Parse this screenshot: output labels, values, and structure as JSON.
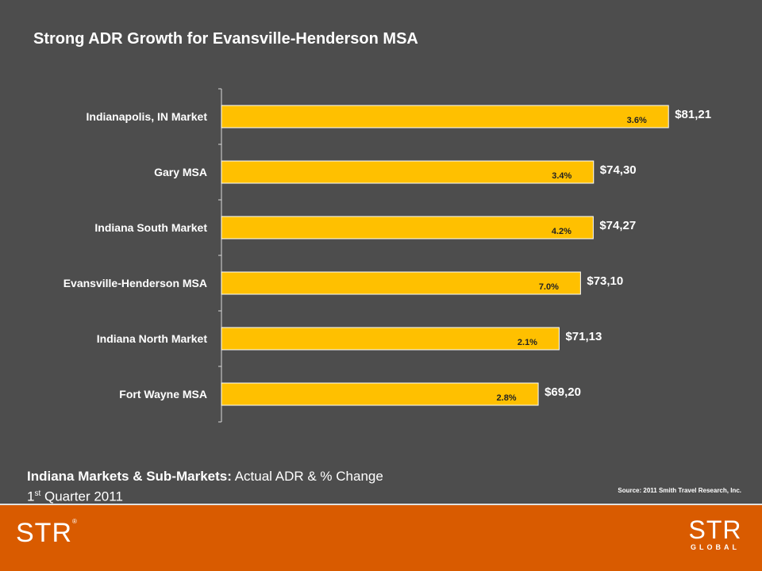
{
  "title": "Strong ADR Growth for Evansville-Henderson MSA",
  "subtitle": {
    "bold_part": "Indiana Markets & Sub-Markets:",
    "normal_part": "Actual ADR & % Change",
    "quarter_num": "1",
    "quarter_sup": "st",
    "quarter_rest": "Quarter 2011"
  },
  "source": "Source: 2011 Smith Travel Research, Inc.",
  "logos": {
    "left": "STR",
    "left_mark": "®",
    "right_top": "STR",
    "right_bottom": "GLOBAL"
  },
  "colors": {
    "background": "#4d4d4d",
    "bar": "#ffc000",
    "footer": "#d95b00",
    "text": "#ffffff"
  },
  "chart_data": {
    "type": "bar",
    "orientation": "horizontal",
    "categories": [
      "Indianapolis, IN Market",
      "Gary MSA",
      "Indiana South Market",
      "Evansville-Henderson MSA",
      "Indiana North Market",
      "Fort Wayne MSA"
    ],
    "values": [
      81.21,
      74.3,
      74.27,
      73.1,
      71.13,
      69.2
    ],
    "value_labels": [
      "$81,21",
      "$74,30",
      "$74,27",
      "$73,10",
      "$71,13",
      "$69,20"
    ],
    "pct_change_labels": [
      "3.6%",
      "3.4%",
      "4.2%",
      "7.0%",
      "2.1%",
      "2.8%"
    ],
    "xlim": [
      40,
      82
    ],
    "grid": false,
    "legend": "none"
  }
}
